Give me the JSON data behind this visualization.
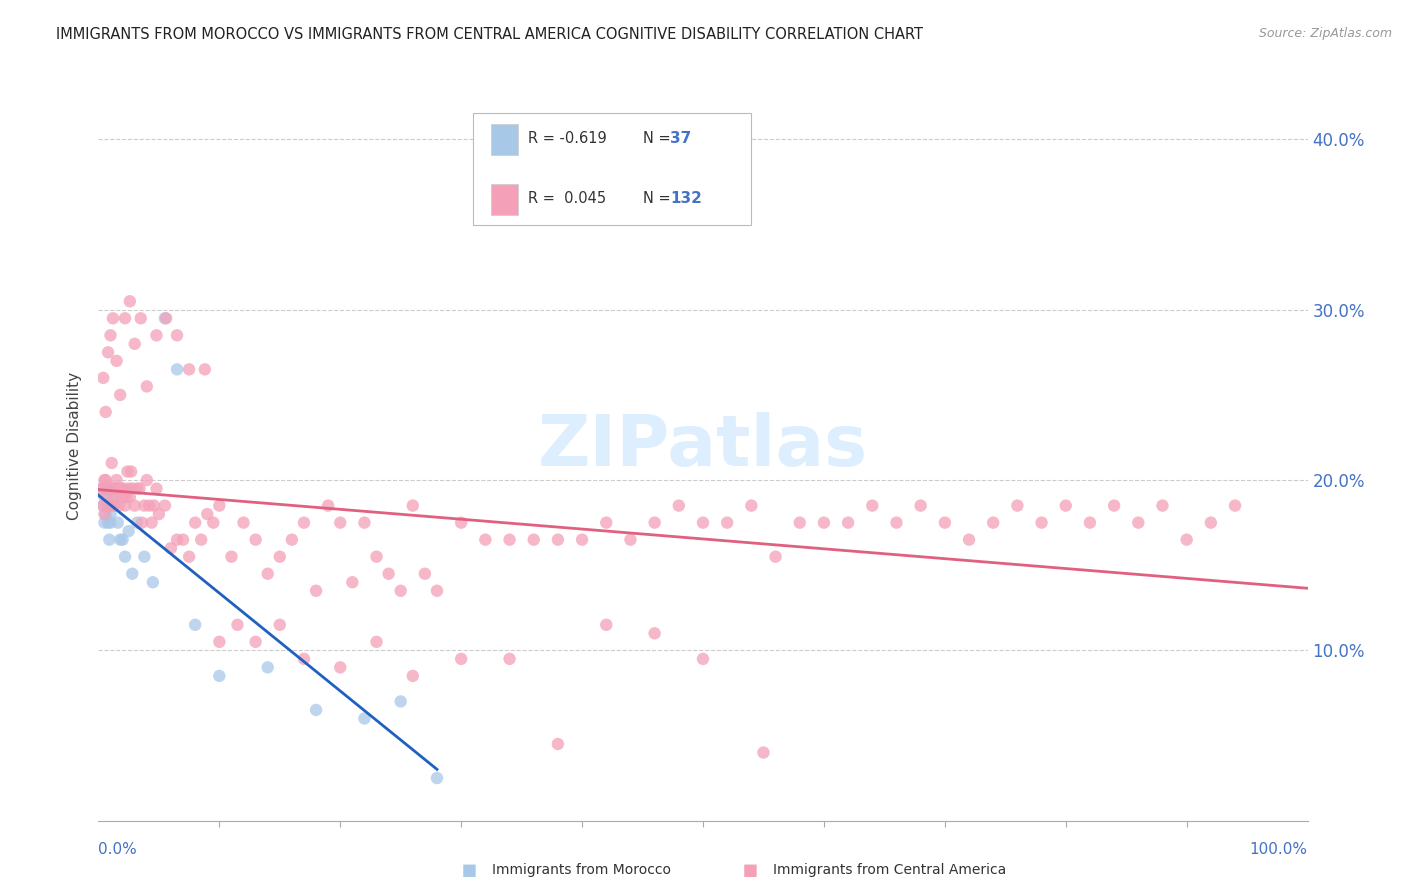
{
  "title": "IMMIGRANTS FROM MOROCCO VS IMMIGRANTS FROM CENTRAL AMERICA COGNITIVE DISABILITY CORRELATION CHART",
  "source": "Source: ZipAtlas.com",
  "ylabel": "Cognitive Disability",
  "ytick_labels": [
    "10.0%",
    "20.0%",
    "30.0%",
    "40.0%"
  ],
  "ytick_values": [
    0.1,
    0.2,
    0.3,
    0.4
  ],
  "legend_label1": "Immigrants from Morocco",
  "legend_label2": "Immigrants from Central America",
  "color_morocco": "#a8c8e8",
  "color_central_america": "#f4a0b8",
  "color_line_morocco": "#2060c0",
  "color_line_central": "#e06080",
  "watermark_color": "#ddeeff",
  "morocco_x": [
    0.003,
    0.004,
    0.005,
    0.005,
    0.006,
    0.006,
    0.007,
    0.007,
    0.008,
    0.008,
    0.009,
    0.009,
    0.01,
    0.01,
    0.011,
    0.012,
    0.013,
    0.014,
    0.015,
    0.016,
    0.018,
    0.02,
    0.022,
    0.025,
    0.028,
    0.032,
    0.038,
    0.045,
    0.055,
    0.065,
    0.08,
    0.1,
    0.14,
    0.18,
    0.22,
    0.25,
    0.28
  ],
  "morocco_y": [
    0.195,
    0.185,
    0.175,
    0.19,
    0.18,
    0.195,
    0.185,
    0.195,
    0.175,
    0.185,
    0.195,
    0.165,
    0.18,
    0.175,
    0.195,
    0.19,
    0.185,
    0.195,
    0.195,
    0.175,
    0.165,
    0.165,
    0.155,
    0.17,
    0.145,
    0.175,
    0.155,
    0.14,
    0.295,
    0.265,
    0.115,
    0.085,
    0.09,
    0.065,
    0.06,
    0.07,
    0.025
  ],
  "central_x": [
    0.003,
    0.004,
    0.005,
    0.005,
    0.006,
    0.006,
    0.007,
    0.008,
    0.009,
    0.01,
    0.011,
    0.012,
    0.013,
    0.014,
    0.015,
    0.016,
    0.017,
    0.018,
    0.019,
    0.02,
    0.021,
    0.022,
    0.023,
    0.024,
    0.025,
    0.026,
    0.027,
    0.028,
    0.03,
    0.032,
    0.034,
    0.036,
    0.038,
    0.04,
    0.042,
    0.044,
    0.046,
    0.048,
    0.05,
    0.055,
    0.06,
    0.065,
    0.07,
    0.075,
    0.08,
    0.085,
    0.09,
    0.095,
    0.1,
    0.11,
    0.12,
    0.13,
    0.14,
    0.15,
    0.16,
    0.17,
    0.18,
    0.19,
    0.2,
    0.21,
    0.22,
    0.23,
    0.24,
    0.25,
    0.26,
    0.27,
    0.28,
    0.3,
    0.32,
    0.34,
    0.36,
    0.38,
    0.4,
    0.42,
    0.44,
    0.46,
    0.48,
    0.5,
    0.52,
    0.54,
    0.56,
    0.58,
    0.6,
    0.62,
    0.64,
    0.66,
    0.68,
    0.7,
    0.72,
    0.74,
    0.76,
    0.78,
    0.8,
    0.82,
    0.84,
    0.86,
    0.88,
    0.9,
    0.92,
    0.94,
    0.004,
    0.006,
    0.008,
    0.01,
    0.012,
    0.015,
    0.018,
    0.022,
    0.026,
    0.03,
    0.035,
    0.04,
    0.048,
    0.056,
    0.065,
    0.075,
    0.088,
    0.1,
    0.115,
    0.13,
    0.15,
    0.17,
    0.2,
    0.23,
    0.26,
    0.3,
    0.34,
    0.38,
    0.42,
    0.46,
    0.5,
    0.55
  ],
  "central_y": [
    0.195,
    0.185,
    0.2,
    0.18,
    0.195,
    0.2,
    0.19,
    0.185,
    0.195,
    0.185,
    0.21,
    0.195,
    0.185,
    0.19,
    0.2,
    0.195,
    0.185,
    0.195,
    0.195,
    0.19,
    0.195,
    0.185,
    0.19,
    0.205,
    0.195,
    0.19,
    0.205,
    0.195,
    0.185,
    0.195,
    0.195,
    0.175,
    0.185,
    0.2,
    0.185,
    0.175,
    0.185,
    0.195,
    0.18,
    0.185,
    0.16,
    0.165,
    0.165,
    0.155,
    0.175,
    0.165,
    0.18,
    0.175,
    0.185,
    0.155,
    0.175,
    0.165,
    0.145,
    0.155,
    0.165,
    0.175,
    0.135,
    0.185,
    0.175,
    0.14,
    0.175,
    0.155,
    0.145,
    0.135,
    0.185,
    0.145,
    0.135,
    0.175,
    0.165,
    0.165,
    0.165,
    0.165,
    0.165,
    0.175,
    0.165,
    0.175,
    0.185,
    0.175,
    0.175,
    0.185,
    0.155,
    0.175,
    0.175,
    0.175,
    0.185,
    0.175,
    0.185,
    0.175,
    0.165,
    0.175,
    0.185,
    0.175,
    0.185,
    0.175,
    0.185,
    0.175,
    0.185,
    0.165,
    0.175,
    0.185,
    0.26,
    0.24,
    0.275,
    0.285,
    0.295,
    0.27,
    0.25,
    0.295,
    0.305,
    0.28,
    0.295,
    0.255,
    0.285,
    0.295,
    0.285,
    0.265,
    0.265,
    0.105,
    0.115,
    0.105,
    0.115,
    0.095,
    0.09,
    0.105,
    0.085,
    0.095,
    0.095,
    0.045,
    0.115,
    0.11,
    0.095,
    0.04
  ]
}
